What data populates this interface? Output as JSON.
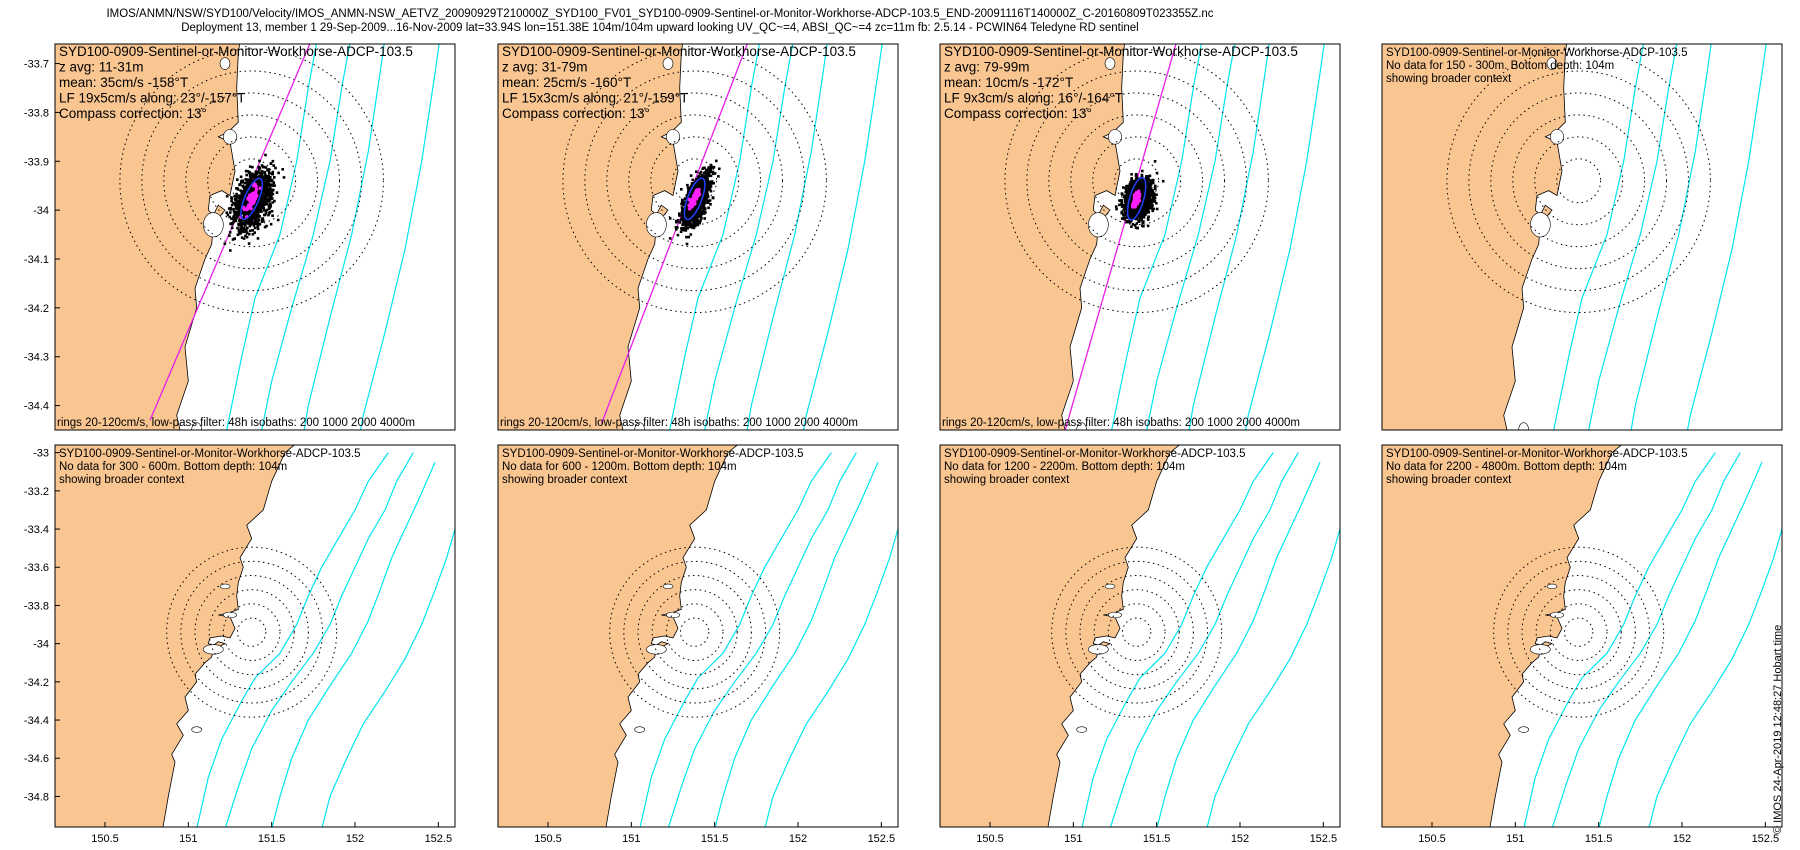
{
  "chart_data": {
    "type": "scatter",
    "title_line1": "IMOS/ANMN/NSW/SYD100/Velocity/IMOS_ANMN-NSW_AETVZ_20090929T210000Z_SYD100_FV01_SYD100-0909-Sentinel-or-Monitor-Workhorse-ADCP-103.5_END-20091116T140000Z_C-20160809T023355Z.nc",
    "title_line2": "Deployment 13, member 1 29-Sep-2009...16-Nov-2009 lat=33.94S lon=151.38E 104m/104m upward looking UV_QC~=4, ABSI_QC~=4 zc=11m fb: 2.5.14 - PCWIN64 Teledyne RD sentinel",
    "credit": "© IMOS 24-Apr-2019 12:48:27 Hobart time",
    "station": {
      "lon": 151.38,
      "lat": -33.94
    },
    "top_row": {
      "xlim": [
        150.2,
        152.6
      ],
      "ylim": [
        -34.45,
        -33.66
      ],
      "yticks": [
        -33.7,
        -33.8,
        -33.9,
        -34,
        -34.1,
        -34.2,
        -34.3,
        -34.4
      ],
      "xticks": [],
      "ring_radius_step_deg": 0.085
    },
    "bottom_row": {
      "xlim": [
        150.2,
        152.6
      ],
      "ylim": [
        -34.96,
        -32.96
      ],
      "yticks": [
        -33,
        -33.2,
        -33.4,
        -33.6,
        -33.8,
        -34,
        -34.2,
        -34.4,
        -34.6,
        -34.8
      ],
      "xticks": [
        150.5,
        151,
        151.5,
        152,
        152.5
      ],
      "ring_radius_step_deg": 0.085
    },
    "panels": [
      {
        "row": 0,
        "col": 0,
        "type": "data",
        "lines": [
          "SYD100-0909-Sentinel-or-Monitor-Workhorse-ADCP-103.5",
          "z avg: 11-31m",
          "mean: 35cm/s -158°T",
          "LF 19x5cm/s along: 23°/-157°T",
          "Compass correction: 13°"
        ],
        "footer": "rings 20-120cm/s, low-pass filter: 48h isobaths: 200 1000 2000 4000m",
        "cloud": {
          "rx": 0.21,
          "ry": 0.11,
          "angle": 23
        },
        "axis_deg": 23
      },
      {
        "row": 0,
        "col": 1,
        "type": "data",
        "lines": [
          "SYD100-0909-Sentinel-or-Monitor-Workhorse-ADCP-103.5",
          "z avg: 31-79m",
          "mean: 25cm/s -160°T",
          "LF 15x3cm/s along: 21°/-159°T",
          "Compass correction: 13°"
        ],
        "footer": "rings 20-120cm/s, low-pass filter: 48h isobaths: 200 1000 2000 4000m",
        "cloud": {
          "rx": 0.19,
          "ry": 0.07,
          "angle": 21
        },
        "axis_deg": 21
      },
      {
        "row": 0,
        "col": 2,
        "type": "data",
        "lines": [
          "SYD100-0909-Sentinel-or-Monitor-Workhorse-ADCP-103.5",
          "z avg: 79-99m",
          "mean: 10cm/s -172°T",
          "LF 9x3cm/s along: 16°/-164°T",
          "Compass correction: 13°"
        ],
        "footer": "rings 20-120cm/s, low-pass filter: 48h isobaths: 200 1000 2000 4000m",
        "cloud": {
          "rx": 0.14,
          "ry": 0.09,
          "angle": 16
        },
        "axis_deg": 16
      },
      {
        "row": 0,
        "col": 3,
        "type": "context",
        "lines": [
          "SYD100-0909-Sentinel-or-Monitor-Workhorse-ADCP-103.5",
          "No data for 150 - 300m. Bottom depth: 104m",
          "showing broader context"
        ]
      },
      {
        "row": 1,
        "col": 0,
        "type": "context",
        "lines": [
          "SYD100-0909-Sentinel-or-Monitor-Workhorse-ADCP-103.5",
          "No data for 300 - 600m. Bottom depth: 104m",
          "showing broader context"
        ]
      },
      {
        "row": 1,
        "col": 1,
        "type": "context",
        "lines": [
          "SYD100-0909-Sentinel-or-Monitor-Workhorse-ADCP-103.5",
          "No data for 600 - 1200m. Bottom depth: 104m",
          "showing broader context"
        ]
      },
      {
        "row": 1,
        "col": 2,
        "type": "context",
        "lines": [
          "SYD100-0909-Sentinel-or-Monitor-Workhorse-ADCP-103.5",
          "No data for 1200 - 2200m. Bottom depth: 104m",
          "showing broader context"
        ]
      },
      {
        "row": 1,
        "col": 3,
        "type": "context",
        "lines": [
          "SYD100-0909-Sentinel-or-Monitor-Workhorse-ADCP-103.5",
          "No data for 2200 - 4800m. Bottom depth: 104m",
          "showing broader context"
        ]
      }
    ],
    "coast": [
      [
        150.8,
        -35.2
      ],
      [
        150.84,
        -35.0
      ],
      [
        150.88,
        -34.8
      ],
      [
        150.92,
        -34.62
      ],
      [
        150.9,
        -34.58
      ],
      [
        150.97,
        -34.48
      ],
      [
        150.93,
        -34.42
      ],
      [
        151.0,
        -34.35
      ],
      [
        150.98,
        -34.28
      ],
      [
        151.05,
        -34.2
      ],
      [
        151.04,
        -34.16
      ],
      [
        151.1,
        -34.1
      ],
      [
        151.14,
        -34.07
      ],
      [
        151.15,
        -34.03
      ],
      [
        151.22,
        -34.0
      ],
      [
        151.18,
        -33.99
      ],
      [
        151.15,
        -34.01
      ],
      [
        151.12,
        -34.0
      ],
      [
        151.13,
        -33.97
      ],
      [
        151.2,
        -33.96
      ],
      [
        151.25,
        -33.97
      ],
      [
        151.28,
        -33.92
      ],
      [
        151.25,
        -33.86
      ],
      [
        151.18,
        -33.85
      ],
      [
        151.24,
        -33.84
      ],
      [
        151.3,
        -33.82
      ],
      [
        151.29,
        -33.75
      ],
      [
        151.3,
        -33.68
      ],
      [
        151.33,
        -33.6
      ],
      [
        151.31,
        -33.55
      ],
      [
        151.38,
        -33.45
      ],
      [
        151.35,
        -33.38
      ],
      [
        151.45,
        -33.3
      ],
      [
        151.5,
        -33.15
      ],
      [
        151.58,
        -33.0
      ],
      [
        151.65,
        -32.95
      ],
      [
        151.68,
        -32.8
      ]
    ],
    "isobaths": [
      {
        "depth": 200,
        "pts": [
          [
            151.05,
            -34.97
          ],
          [
            151.12,
            -34.7
          ],
          [
            151.2,
            -34.5
          ],
          [
            151.32,
            -34.3
          ],
          [
            151.4,
            -34.18
          ],
          [
            151.55,
            -34.05
          ],
          [
            151.65,
            -33.9
          ],
          [
            151.72,
            -33.75
          ],
          [
            151.8,
            -33.6
          ],
          [
            151.9,
            -33.45
          ],
          [
            152.0,
            -33.3
          ],
          [
            152.08,
            -33.15
          ],
          [
            152.2,
            -33.0
          ]
        ]
      },
      {
        "depth": 1000,
        "pts": [
          [
            151.22,
            -34.97
          ],
          [
            151.3,
            -34.75
          ],
          [
            151.38,
            -34.55
          ],
          [
            151.5,
            -34.35
          ],
          [
            151.62,
            -34.2
          ],
          [
            151.75,
            -34.05
          ],
          [
            151.85,
            -33.9
          ],
          [
            151.92,
            -33.75
          ],
          [
            152.0,
            -33.6
          ],
          [
            152.08,
            -33.45
          ],
          [
            152.18,
            -33.3
          ],
          [
            152.25,
            -33.15
          ],
          [
            152.35,
            -33.0
          ]
        ]
      },
      {
        "depth": 2000,
        "pts": [
          [
            151.5,
            -34.97
          ],
          [
            151.55,
            -34.8
          ],
          [
            151.62,
            -34.6
          ],
          [
            151.72,
            -34.4
          ],
          [
            151.85,
            -34.22
          ],
          [
            151.98,
            -34.05
          ],
          [
            152.08,
            -33.88
          ],
          [
            152.15,
            -33.72
          ],
          [
            152.22,
            -33.55
          ],
          [
            152.3,
            -33.4
          ],
          [
            152.38,
            -33.25
          ],
          [
            152.48,
            -33.05
          ]
        ]
      },
      {
        "depth": 4000,
        "pts": [
          [
            151.8,
            -34.97
          ],
          [
            151.85,
            -34.8
          ],
          [
            151.95,
            -34.6
          ],
          [
            152.05,
            -34.42
          ],
          [
            152.18,
            -34.25
          ],
          [
            152.3,
            -34.08
          ],
          [
            152.4,
            -33.9
          ],
          [
            152.48,
            -33.72
          ],
          [
            152.55,
            -33.55
          ],
          [
            152.6,
            -33.4
          ]
        ]
      }
    ]
  }
}
